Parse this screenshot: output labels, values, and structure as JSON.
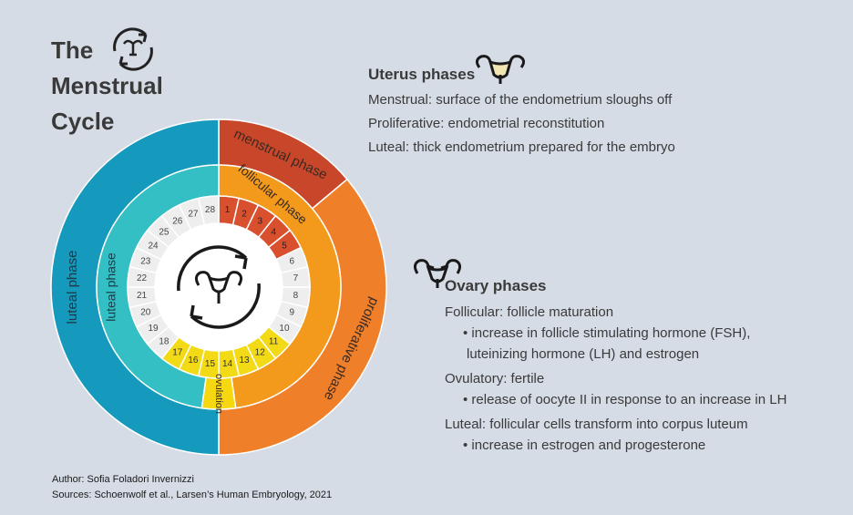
{
  "title": {
    "line1": "The",
    "line2": "Menstrual",
    "line3": "Cycle"
  },
  "wheel": {
    "outer_labels": {
      "menstrual": "menstrual phase",
      "proliferative": "proliferative phase",
      "luteal": "luteal phase"
    },
    "middle_labels": {
      "follicular": "follicular phase",
      "luteal": "luteal phase",
      "ovulation": "ovulation"
    },
    "days": [
      "1",
      "2",
      "3",
      "4",
      "5",
      "6",
      "7",
      "8",
      "9",
      "10",
      "11",
      "12",
      "13",
      "14",
      "15",
      "16",
      "17",
      "18",
      "19",
      "20",
      "21",
      "22",
      "23",
      "24",
      "25",
      "26",
      "27",
      "28"
    ]
  },
  "uterus": {
    "heading": "Uterus phases",
    "items": [
      "Menstrual: surface of the endometrium sloughs off",
      "Proliferative: endometrial reconstitution",
      "Luteal: thick endometrium prepared for the embryo"
    ]
  },
  "ovary": {
    "heading": "Ovary phases",
    "follicular": "Follicular: follicle maturation",
    "follicular_b1": "• increase in follicle stimulating hormone (FSH),",
    "follicular_b2": "luteinizing hormone (LH) and estrogen",
    "ovulatory": "Ovulatory: fertile",
    "ovulatory_b1": "• release of oocyte II in response to an increase in LH",
    "luteal": "Luteal: follicular cells transform into corpus luteum",
    "luteal_b1": "• increase in estrogen and progesterone"
  },
  "credits": {
    "author": "Author: Sofia Foladori Invernizzi",
    "sources": "Sources: Schoenwolf et al., Larsen’s Human Embryology, 2021"
  },
  "colors": {
    "background": "#d6dce6",
    "menstrual": "#c8472b",
    "proliferative": "#f07f2a",
    "luteal_outer": "#1599bd",
    "follicular": "#f39a1c",
    "luteal_middle": "#33bfc3",
    "ovulation": "#f5d80f",
    "day_menstrual": "#d9502f",
    "day_ovulatory": "#f2da16",
    "day_plain": "#eeeeee"
  },
  "icons": [
    "cycle-uterus-icon",
    "uterus-icon",
    "ovary-icon"
  ]
}
